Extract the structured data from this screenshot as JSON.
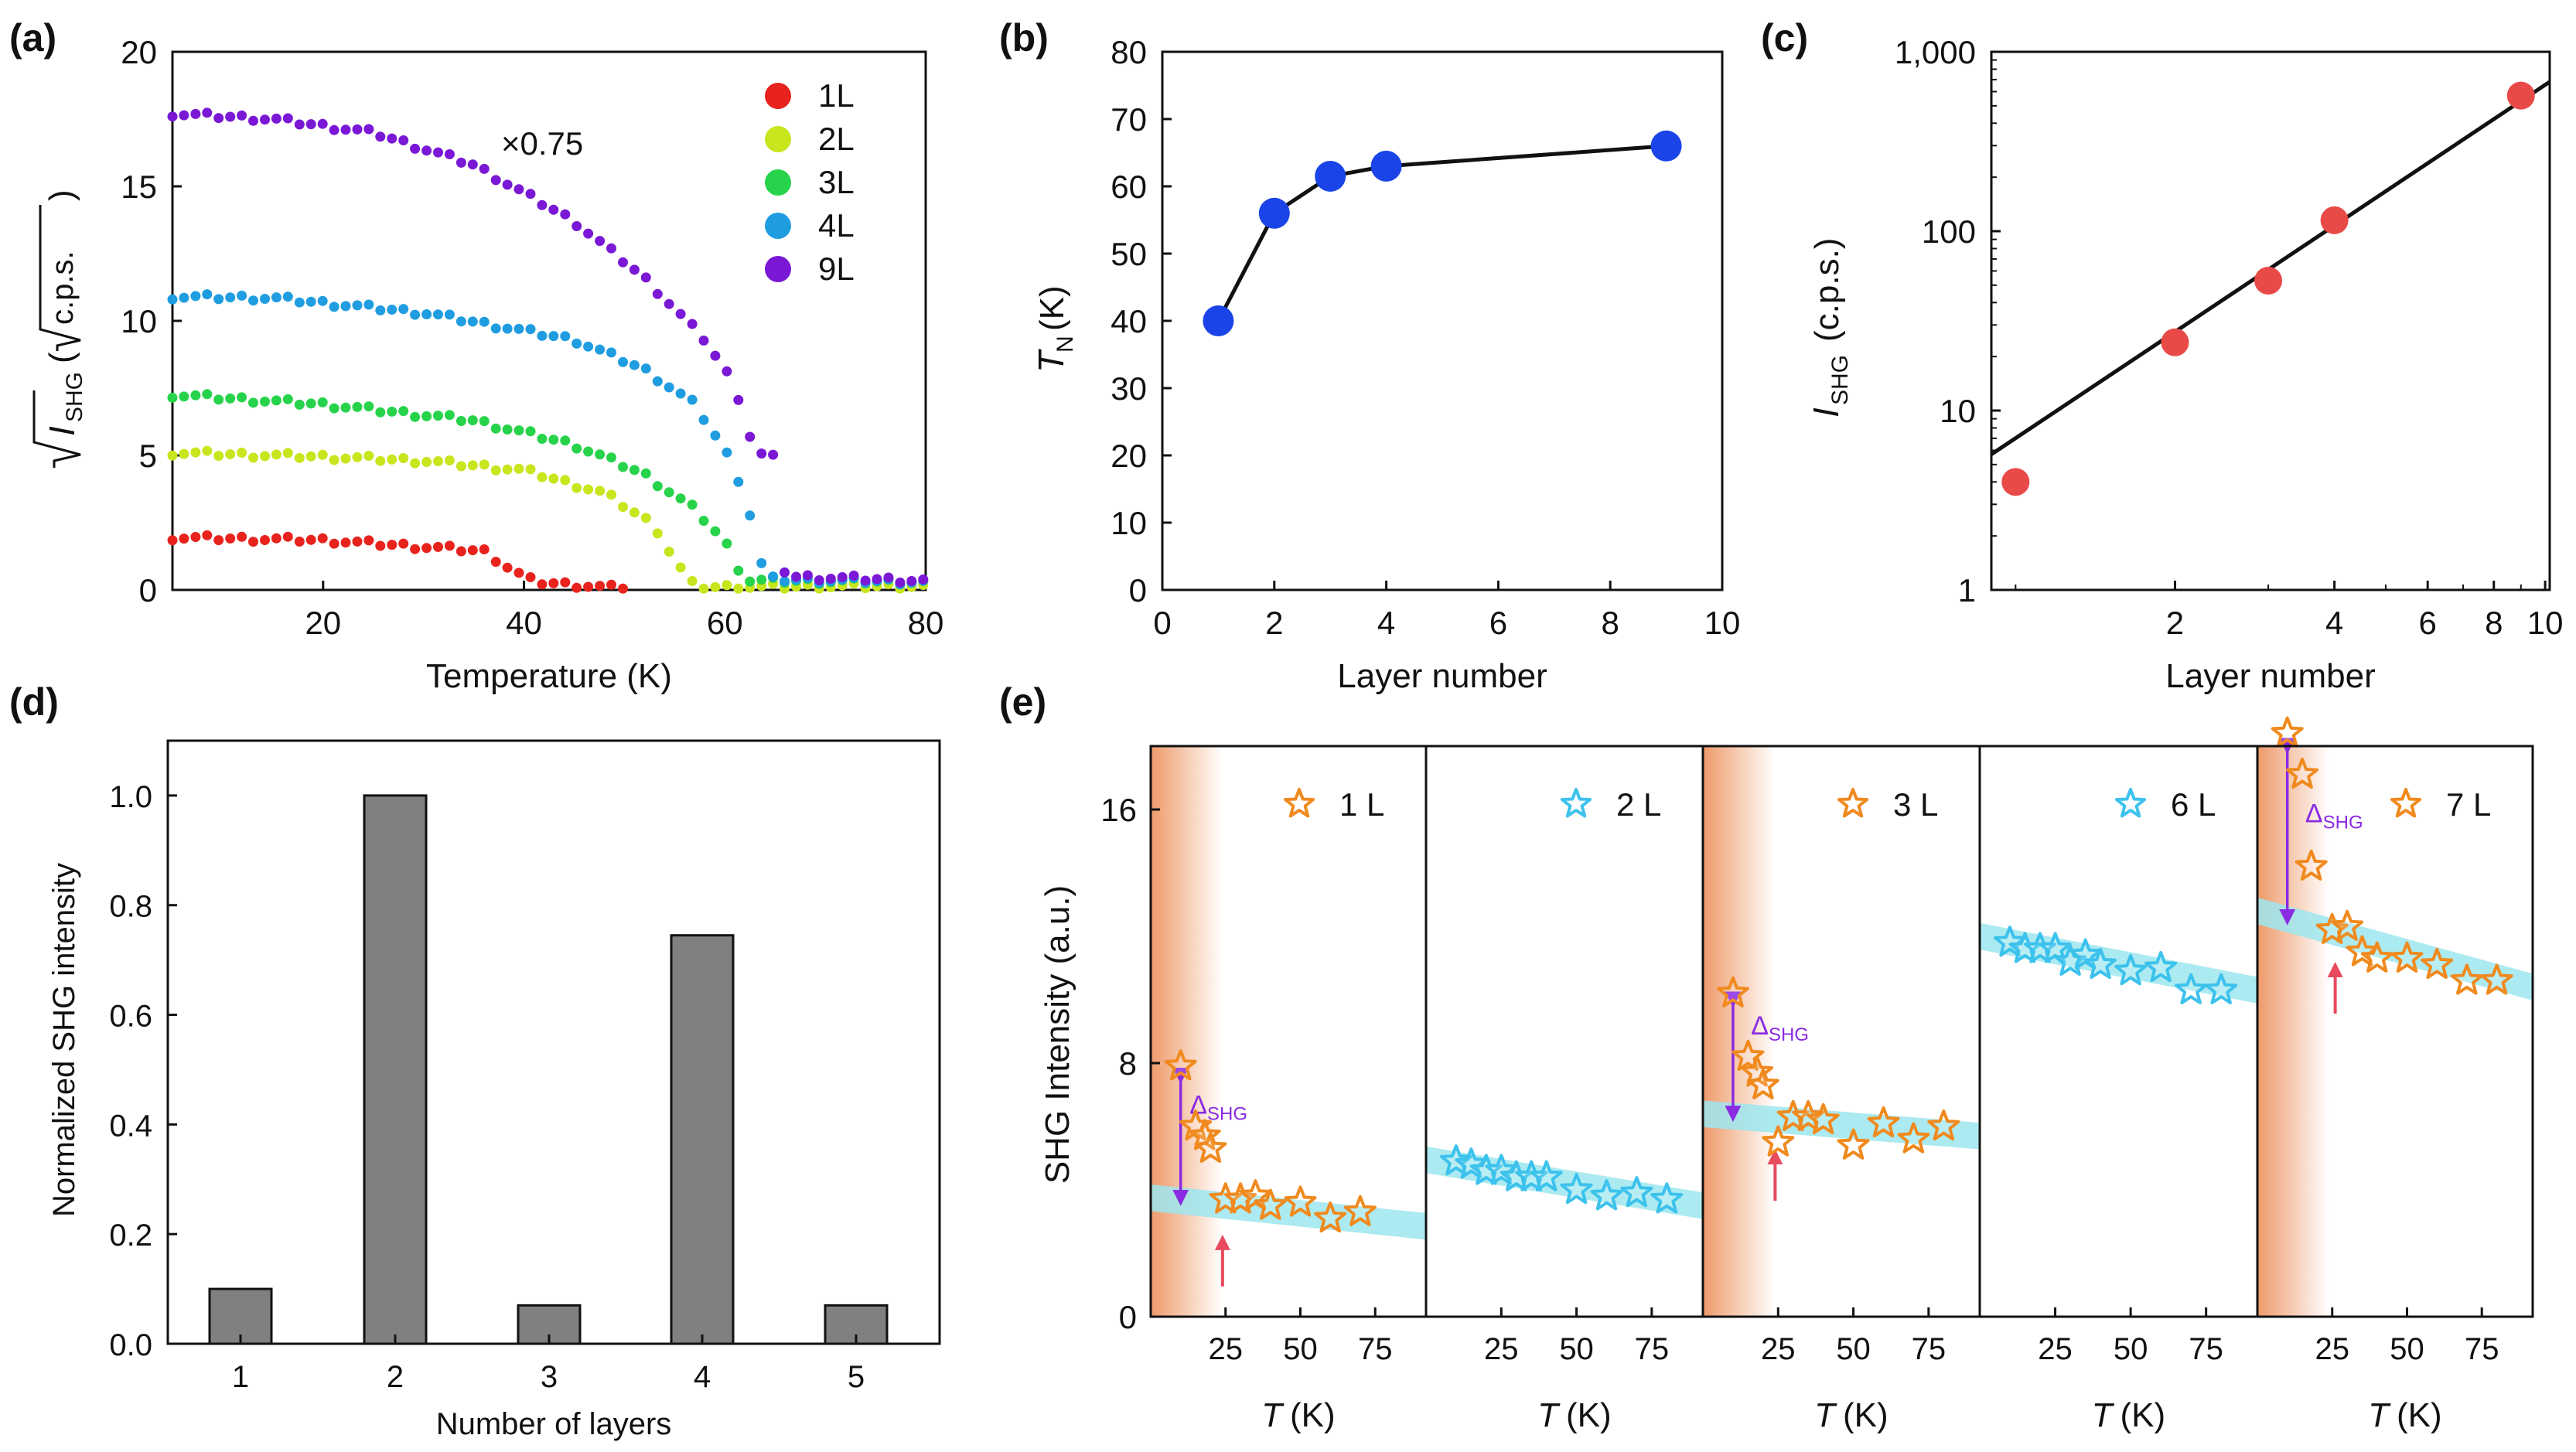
{
  "colors": {
    "red": "#e8231d",
    "yellow": "#c8e51e",
    "green": "#27d34a",
    "blue": "#1f9de0",
    "purple": "#7a18d6",
    "bar": "#808080",
    "node": "#1b44e8",
    "redDot": "#e84a48",
    "orangeStar": "#f08a1e",
    "cyanStar": "#3cc2ec",
    "band": "#9ee6ee",
    "delta": "#8a2be2",
    "arrow": "#e84a5e",
    "shade": "#ee9a6a"
  },
  "chart_data": [
    {
      "panel": "(a)",
      "type": "scatter",
      "xlabel": "Temperature (K)",
      "ylabel_main": "I",
      "ylabel_sub": "SHG",
      "ylabel_unit": "c.p.s.",
      "xlim": [
        5,
        80
      ],
      "ylim": [
        0,
        20
      ],
      "xticks": [
        "20",
        "40",
        "60",
        "80"
      ],
      "yticks": [
        "0",
        "5",
        "10",
        "15",
        "20"
      ],
      "annotation": "×0.75",
      "series": [
        {
          "name": "1L",
          "color": "red",
          "profile": [
            [
              5,
              1.95
            ],
            [
              20,
              1.85
            ],
            [
              30,
              1.6
            ],
            [
              36,
              1.45
            ],
            [
              39,
              0.7
            ],
            [
              41,
              0.3
            ],
            [
              50,
              0.05
            ]
          ]
        },
        {
          "name": "2L",
          "color": "yellow",
          "profile": [
            [
              5,
              5.1
            ],
            [
              20,
              4.95
            ],
            [
              30,
              4.8
            ],
            [
              40,
              4.45
            ],
            [
              48,
              3.6
            ],
            [
              53,
              2.4
            ],
            [
              55,
              1.1
            ],
            [
              57,
              0.1
            ],
            [
              80,
              0.15
            ]
          ]
        },
        {
          "name": "3L",
          "color": "green",
          "profile": [
            [
              5,
              7.25
            ],
            [
              20,
              6.9
            ],
            [
              35,
              6.3
            ],
            [
              45,
              5.4
            ],
            [
              52,
              4.3
            ],
            [
              57,
              3.0
            ],
            [
              60,
              1.8
            ],
            [
              62,
              0.35
            ],
            [
              80,
              0.3
            ]
          ]
        },
        {
          "name": "4L",
          "color": "blue",
          "profile": [
            [
              5,
              10.9
            ],
            [
              15,
              10.85
            ],
            [
              30,
              10.3
            ],
            [
              45,
              9.3
            ],
            [
              52,
              8.2
            ],
            [
              57,
              6.9
            ],
            [
              60,
              5.2
            ],
            [
              62,
              3.6
            ],
            [
              64,
              0.4
            ],
            [
              80,
              0.3
            ]
          ]
        },
        {
          "name": "9L",
          "color": "purple",
          "profile": [
            [
              5,
              17.7
            ],
            [
              15,
              17.5
            ],
            [
              25,
              17.0
            ],
            [
              35,
              15.8
            ],
            [
              45,
              13.7
            ],
            [
              52,
              11.6
            ],
            [
              58,
              9.3
            ],
            [
              61,
              7.6
            ],
            [
              63,
              5.1
            ],
            [
              65,
              4.9
            ],
            [
              66,
              0.5
            ],
            [
              80,
              0.35
            ]
          ]
        }
      ]
    },
    {
      "panel": "(b)",
      "type": "line",
      "xlabel": "Layer number",
      "ylabel_main": "T",
      "ylabel_sub": "N",
      "ylabel_unit": "(K)",
      "xlim": [
        0,
        10
      ],
      "ylim": [
        0,
        80
      ],
      "xticks": [
        "0",
        "2",
        "4",
        "6",
        "8",
        "10"
      ],
      "yticks": [
        "0",
        "10",
        "20",
        "30",
        "40",
        "50",
        "60",
        "70",
        "80"
      ],
      "x": [
        1,
        2,
        3,
        4,
        9
      ],
      "y": [
        40,
        56,
        61.5,
        63,
        66
      ]
    },
    {
      "panel": "(c)",
      "type": "scatter",
      "xlabel": "Layer number",
      "ylabel_main": "I",
      "ylabel_sub": "SHG",
      "ylabel_unit": "(c.p.s.)",
      "xscale": "log",
      "yscale": "log",
      "xlim": [
        0.9,
        10.2
      ],
      "ylim": [
        1,
        1000
      ],
      "xticks": [
        "2",
        "4",
        "6",
        "8",
        "10"
      ],
      "yticks": [
        "1",
        "10",
        "100",
        "1,000"
      ],
      "x": [
        1,
        2,
        3,
        4,
        9
      ],
      "y": [
        4,
        24,
        53,
        115,
        570
      ],
      "fit": {
        "x": [
          0.9,
          10.2
        ],
        "y": [
          5.7,
          680
        ]
      }
    },
    {
      "panel": "(d)",
      "type": "bar",
      "xlabel": "Number of layers",
      "ylabel": "Normalized SHG intensity",
      "ylim": [
        0,
        1.1
      ],
      "categories": [
        "1",
        "2",
        "3",
        "4",
        "5"
      ],
      "values": [
        0.1,
        1.0,
        0.07,
        0.745,
        0.07
      ],
      "yticks": [
        "0.0",
        "0.2",
        "0.4",
        "0.6",
        "0.8",
        "1.0"
      ]
    },
    {
      "panel": "(e)",
      "type": "scatter",
      "ylabel": "SHG Intensity (a.u.)",
      "xlabel_T": "T",
      "xlabel_unit": "(K)",
      "ylim": [
        0,
        18
      ],
      "xlim": [
        0,
        92
      ],
      "yticks": [
        "0",
        "8",
        "16"
      ],
      "xticks": [
        "25",
        "50",
        "75"
      ],
      "delta_label": "Δ",
      "delta_sub": "SHG",
      "subpanels": [
        {
          "label": "1 L",
          "color": "orangeStar",
          "shaded": true,
          "x": [
            10,
            15,
            18,
            20,
            25,
            30,
            35,
            40,
            50,
            60,
            70
          ],
          "y": [
            7.9,
            6.0,
            5.7,
            5.3,
            3.7,
            3.7,
            3.8,
            3.5,
            3.6,
            3.1,
            3.3
          ],
          "band": [
            3.75,
            2.85
          ],
          "delta": {
            "x": 10,
            "top": 7.6,
            "bottom": 3.75,
            "label_at": [
              13,
              6.4
            ]
          },
          "arrow_x": 24
        },
        {
          "label": "2 L",
          "color": "cyanStar",
          "shaded": false,
          "x": [
            10,
            15,
            20,
            25,
            30,
            35,
            40,
            50,
            60,
            70,
            80
          ],
          "y": [
            4.9,
            4.8,
            4.6,
            4.6,
            4.4,
            4.4,
            4.4,
            4.0,
            3.8,
            3.9,
            3.7
          ],
          "band": [
            4.95,
            3.5
          ]
        },
        {
          "label": "3 L",
          "color": "orangeStar",
          "shaded": true,
          "x": [
            10,
            15,
            18,
            20,
            25,
            30,
            35,
            40,
            50,
            60,
            70,
            80
          ],
          "y": [
            10.2,
            8.2,
            7.7,
            7.3,
            5.5,
            6.3,
            6.3,
            6.2,
            5.4,
            6.1,
            5.6,
            6.0
          ],
          "band": [
            6.4,
            5.7
          ],
          "delta": {
            "x": 10,
            "top": 10.0,
            "bottom": 6.4,
            "label_at": [
              16,
              8.9
            ]
          },
          "arrow_x": 24
        },
        {
          "label": "6 L",
          "color": "cyanStar",
          "shaded": false,
          "x": [
            10,
            15,
            20,
            25,
            30,
            35,
            40,
            50,
            60,
            70,
            80
          ],
          "y": [
            11.8,
            11.6,
            11.6,
            11.6,
            11.2,
            11.4,
            11.1,
            10.9,
            11.0,
            10.3,
            10.3
          ],
          "band": [
            12.0,
            10.3
          ]
        },
        {
          "label": "7 L",
          "color": "orangeStar",
          "shaded": true,
          "x": [
            10,
            15,
            18,
            25,
            30,
            35,
            40,
            50,
            60,
            70,
            80
          ],
          "y": [
            18.4,
            17.1,
            14.2,
            12.2,
            12.3,
            11.5,
            11.3,
            11.3,
            11.1,
            10.6,
            10.6
          ],
          "band": [
            12.8,
            10.4
          ],
          "delta": {
            "x": 10,
            "top": 18.0,
            "bottom": 12.6,
            "label_at": [
              16,
              15.6
            ]
          },
          "arrow_x": 26
        }
      ]
    }
  ]
}
